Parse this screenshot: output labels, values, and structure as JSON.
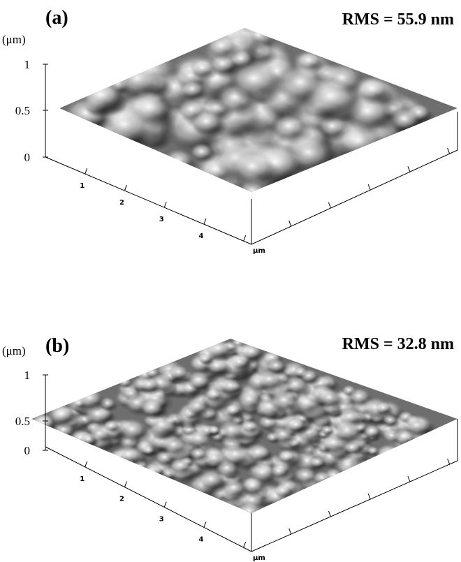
{
  "panels": [
    {
      "label": "(a)",
      "rms": "RMS = 55.9 nm",
      "z_unit": "(μm)",
      "z_ticks": [
        "1",
        "0.5",
        "0"
      ],
      "x_ticks": [
        "1",
        "2",
        "3",
        "4"
      ],
      "x_unit": "μm"
    },
    {
      "label": "(b)",
      "rms": "RMS = 32.8 nm",
      "z_unit": "(μm)",
      "z_ticks": [
        "1",
        "0.5",
        "0"
      ],
      "x_ticks": [
        "1",
        "2",
        "3",
        "4"
      ],
      "x_unit": "μm"
    }
  ]
}
